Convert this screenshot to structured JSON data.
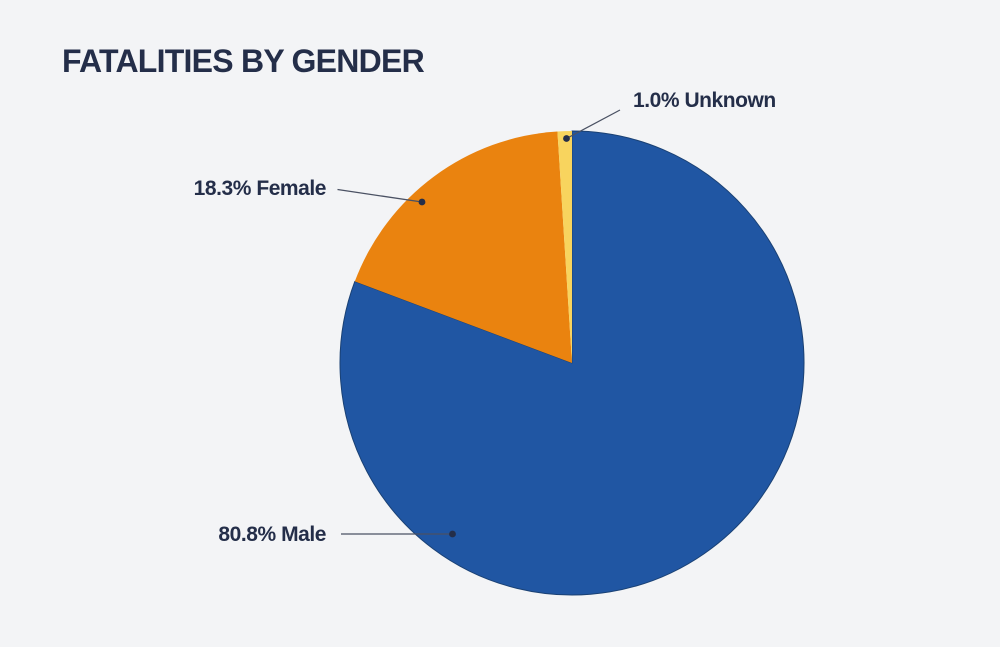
{
  "title": "FATALITIES BY GENDER",
  "chart_data": {
    "type": "pie",
    "title": "FATALITIES BY GENDER",
    "categories": [
      "Male",
      "Female",
      "Unknown"
    ],
    "values": [
      80.8,
      18.3,
      1.0
    ],
    "unit": "%",
    "slices": [
      {
        "label": "Male",
        "value": 80.8,
        "display": "80.8% Male",
        "color": "#2056a3"
      },
      {
        "label": "Female",
        "value": 18.3,
        "display": "18.3% Female",
        "color": "#ea830f"
      },
      {
        "label": "Unknown",
        "value": 1.0,
        "display": "1.0% Unknown",
        "color": "#f8d45e"
      }
    ],
    "start_angle": "12 o'clock",
    "direction": "clockwise",
    "legend": "none",
    "label_style": "external callouts with leader lines and dots"
  },
  "colors": {
    "background": "#f3f4f6",
    "text": "#242e49",
    "leader_line": "#4a5163",
    "dot": "#242e49",
    "male_edge": "#1a4174"
  }
}
